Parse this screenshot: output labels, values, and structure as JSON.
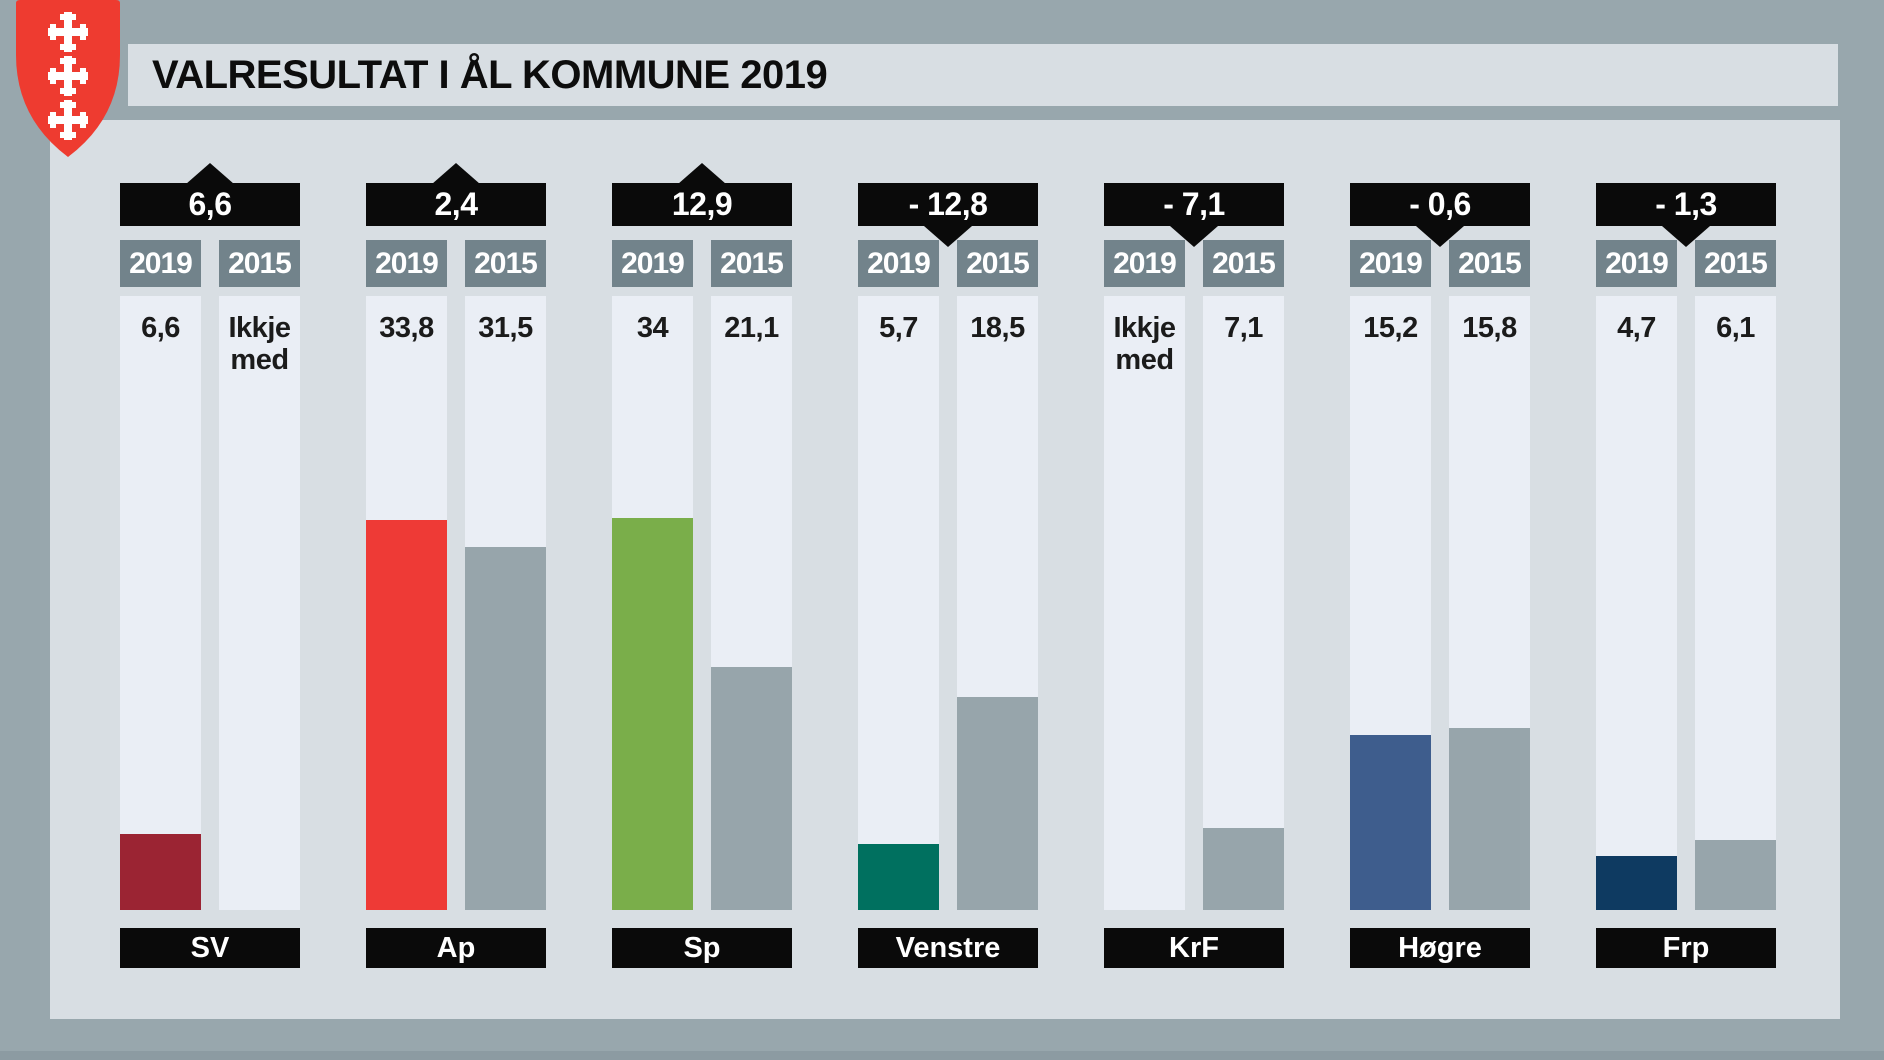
{
  "title": "VALRESULTAT I ÅL KOMMUNE 2019",
  "logo": {
    "name": "aal-kommune-coat-of-arms",
    "shield_color": "#ee3b30",
    "cross_color": "#ffffff"
  },
  "colors": {
    "background": "#98a7ad",
    "bottom_strip": "#8c9ba2",
    "panel": "#d8dee3",
    "track": "#eaeef5",
    "badge_black": "#0a0a0a",
    "year_badge": "#72838b",
    "bar_2015": "#97a5ab",
    "value_text": "#1b1b1b",
    "badge_text": "#ffffff"
  },
  "chart_data": {
    "type": "bar",
    "title": "VALRESULTAT I ÅL KOMMUNE 2019",
    "unit": "percent",
    "ylim": [
      0,
      53
    ],
    "grid": false,
    "legend_position": "per-column-header",
    "series_labels": [
      "2019",
      "2015"
    ],
    "not_included_label": "Ikkje med",
    "parties": [
      {
        "name": "SV",
        "change": "6,6",
        "change_direction": "up",
        "v2019": 6.6,
        "v2015": null,
        "label_2019": [
          "6,6"
        ],
        "label_2015": [
          "Ikkje",
          "med"
        ],
        "color_2019": "#9b2433"
      },
      {
        "name": "Ap",
        "change": "2,4",
        "change_direction": "up",
        "v2019": 33.8,
        "v2015": 31.5,
        "label_2019": [
          "33,8"
        ],
        "label_2015": [
          "31,5"
        ],
        "color_2019": "#ee3a36"
      },
      {
        "name": "Sp",
        "change": "12,9",
        "change_direction": "up",
        "v2019": 34,
        "v2015": 21.1,
        "label_2019": [
          "34"
        ],
        "label_2015": [
          "21,1"
        ],
        "color_2019": "#7aae4a"
      },
      {
        "name": "Venstre",
        "change": "- 12,8",
        "change_direction": "down",
        "v2019": 5.7,
        "v2015": 18.5,
        "label_2019": [
          "5,7"
        ],
        "label_2015": [
          "18,5"
        ],
        "color_2019": "#00705f"
      },
      {
        "name": "KrF",
        "change": "- 7,1",
        "change_direction": "down",
        "v2019": null,
        "v2015": 7.1,
        "label_2019": [
          "Ikkje",
          "med"
        ],
        "label_2015": [
          "7,1"
        ],
        "color_2019": "#0a0a0a"
      },
      {
        "name": "Høgre",
        "change": "- 0,6",
        "change_direction": "down",
        "v2019": 15.2,
        "v2015": 15.8,
        "label_2019": [
          "15,2"
        ],
        "label_2015": [
          "15,8"
        ],
        "color_2019": "#3e5d8d"
      },
      {
        "name": "Frp",
        "change": "- 1,3",
        "change_direction": "down",
        "v2019": 4.7,
        "v2015": 6.1,
        "label_2019": [
          "4,7"
        ],
        "label_2015": [
          "6,1"
        ],
        "color_2019": "#0e3a61"
      }
    ]
  }
}
